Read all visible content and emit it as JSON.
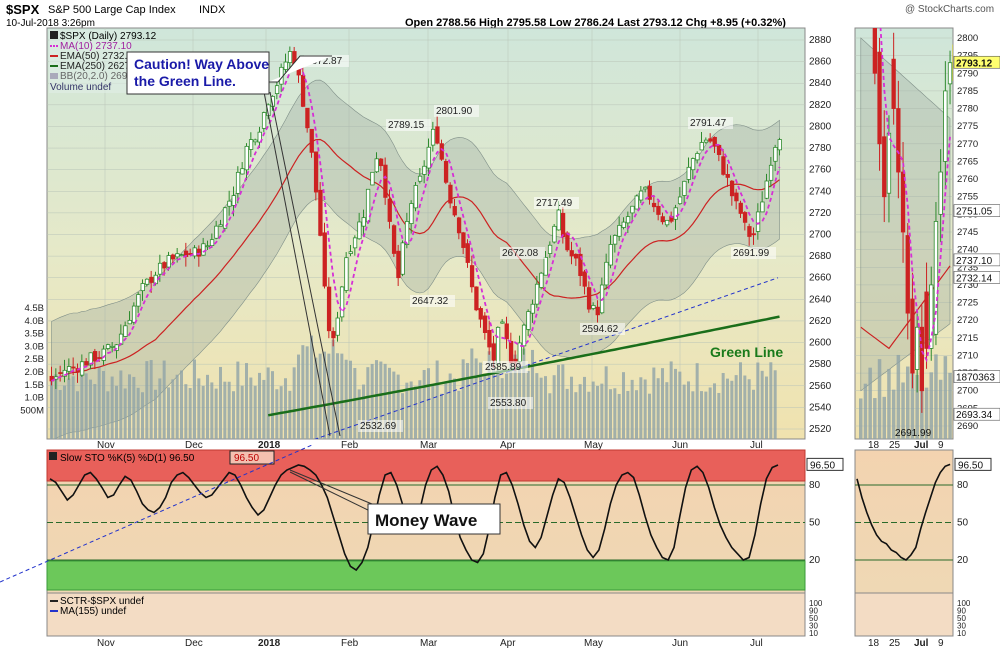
{
  "header": {
    "ticker": "$SPX",
    "name": "S&P 500 Large Cap Index",
    "exchange": "INDX",
    "date": "10-Jul-2018 3:26pm",
    "watermark": "@ StockCharts.com",
    "ohlc": "Open 2788.56  High 2795.58  Low 2786.24  Last 2793.12  Chg +8.95 (+0.32%)"
  },
  "legend": {
    "spx": "$SPX (Daily) 2793.12",
    "ma10": "MA(10) 2737.10",
    "ema50": "EMA(50) 2732.14",
    "ema250": "EMA(250) 2627",
    "bb": "BB(20,2.0) 2693",
    "volume": "Volume undef"
  },
  "annotations": {
    "caution": "Caution! Way Above the Green Line.",
    "caution_line1": "Caution! Way Above",
    "caution_line2": "the Green Line.",
    "green_line": "Green Line",
    "money_wave": "Money Wave"
  },
  "sto_legend": "Slow STO %K(5) %D(1) 96.50",
  "sto_value": "96.50",
  "sctr_legend": "SCTR-$SPX undef",
  "ma155_legend": "MA(155) undef",
  "colors": {
    "up": "#2e8b2e",
    "down": "#cc2222",
    "ma10": "#d62fd6",
    "ema50": "#cc2222",
    "ema250": "#1a6e1a",
    "trend": "#2233cc",
    "overbought": "#e8605a",
    "oversold": "#6cc85a"
  },
  "chart_data": [
    {
      "type": "candlestick",
      "title": "$SPX (Daily)",
      "ylim": [
        2520,
        2880
      ],
      "yticks": [
        "2880",
        "2860",
        "2840",
        "2820",
        "2800",
        "2780",
        "2760",
        "2740",
        "2720",
        "2700",
        "2680",
        "2660",
        "2640",
        "2620",
        "2600",
        "2580",
        "2560",
        "2540",
        "2520"
      ],
      "volume_ticks": [
        "4.5B",
        "4.0B",
        "3.5B",
        "3.0B",
        "2.5B",
        "2.0B",
        "1.5B",
        "1.0B",
        "500M"
      ],
      "xticks": [
        "Nov",
        "Dec",
        "2018",
        "Feb",
        "Mar",
        "Apr",
        "May",
        "Jun",
        "Jul"
      ],
      "price_labels": [
        "2872.87",
        "2789.15",
        "2801.90",
        "2647.32",
        "2717.49",
        "2672.08",
        "2585.89",
        "2553.80",
        "2532.69",
        "2594.62",
        "2791.47",
        "2691.99"
      ],
      "close_path": [
        [
          0,
          2565
        ],
        [
          6,
          2575
        ],
        [
          12,
          2578
        ],
        [
          18,
          2585
        ],
        [
          24,
          2590
        ],
        [
          30,
          2600
        ],
        [
          36,
          2625
        ],
        [
          42,
          2650
        ],
        [
          48,
          2665
        ],
        [
          54,
          2675
        ],
        [
          60,
          2680
        ],
        [
          66,
          2683
        ],
        [
          72,
          2690
        ],
        [
          78,
          2715
        ],
        [
          84,
          2740
        ],
        [
          90,
          2780
        ],
        [
          96,
          2800
        ],
        [
          100,
          2825
        ],
        [
          104,
          2840
        ],
        [
          108,
          2860
        ],
        [
          111,
          2872
        ],
        [
          115,
          2835
        ],
        [
          118,
          2800
        ],
        [
          121,
          2760
        ],
        [
          124,
          2700
        ],
        [
          127,
          2620
        ],
        [
          130,
          2600
        ],
        [
          133,
          2640
        ],
        [
          136,
          2680
        ],
        [
          140,
          2700
        ],
        [
          144,
          2720
        ],
        [
          148,
          2760
        ],
        [
          151,
          2780
        ],
        [
          154,
          2740
        ],
        [
          157,
          2690
        ],
        [
          160,
          2660
        ],
        [
          163,
          2700
        ],
        [
          166,
          2730
        ],
        [
          170,
          2750
        ],
        [
          174,
          2780
        ],
        [
          177,
          2800
        ],
        [
          180,
          2770
        ],
        [
          183,
          2740
        ],
        [
          186,
          2720
        ],
        [
          189,
          2700
        ],
        [
          192,
          2670
        ],
        [
          195,
          2640
        ],
        [
          198,
          2620
        ],
        [
          201,
          2600
        ],
        [
          204,
          2585
        ],
        [
          207,
          2620
        ],
        [
          210,
          2600
        ],
        [
          213,
          2580
        ],
        [
          216,
          2600
        ],
        [
          219,
          2620
        ],
        [
          222,
          2640
        ],
        [
          225,
          2660
        ],
        [
          228,
          2680
        ],
        [
          231,
          2700
        ],
        [
          234,
          2717
        ],
        [
          237,
          2690
        ],
        [
          240,
          2680
        ],
        [
          243,
          2672
        ],
        [
          246,
          2650
        ],
        [
          249,
          2630
        ],
        [
          252,
          2630
        ],
        [
          255,
          2660
        ],
        [
          258,
          2690
        ],
        [
          261,
          2700
        ],
        [
          264,
          2710
        ],
        [
          267,
          2720
        ],
        [
          270,
          2730
        ],
        [
          273,
          2740
        ],
        [
          276,
          2735
        ],
        [
          279,
          2725
        ],
        [
          282,
          2715
        ],
        [
          285,
          2710
        ],
        [
          288,
          2725
        ],
        [
          291,
          2740
        ],
        [
          294,
          2760
        ],
        [
          297,
          2775
        ],
        [
          300,
          2785
        ],
        [
          303,
          2790
        ],
        [
          306,
          2780
        ],
        [
          309,
          2765
        ],
        [
          312,
          2750
        ],
        [
          315,
          2730
        ],
        [
          318,
          2720
        ],
        [
          321,
          2700
        ],
        [
          324,
          2700
        ],
        [
          327,
          2725
        ],
        [
          330,
          2750
        ],
        [
          333,
          2780
        ],
        [
          336,
          2793
        ]
      ],
      "ema250_range": [
        2500,
        2624
      ],
      "trendline": [
        [
          0,
          2425
        ],
        [
          336,
          2660
        ]
      ]
    },
    {
      "type": "line",
      "title": "Slow STO %K(5) %D(1)",
      "ylim": [
        0,
        100
      ],
      "yticks": [
        "80",
        "50",
        "20"
      ],
      "sub_ticks": [
        "100",
        "90",
        "50",
        "30",
        "10"
      ],
      "last": 96.5,
      "values": [
        85,
        82,
        75,
        68,
        72,
        80,
        88,
        90,
        85,
        78,
        70,
        72,
        80,
        87,
        84,
        75,
        65,
        60,
        58,
        62,
        70,
        82,
        88,
        90,
        86,
        80,
        74,
        70,
        72,
        78,
        84,
        90,
        88,
        80,
        70,
        62,
        56,
        60,
        70,
        80,
        88,
        92,
        94,
        96,
        95,
        92,
        88,
        80,
        70,
        55,
        40,
        25,
        15,
        12,
        18,
        30,
        50,
        72,
        88,
        90,
        80,
        65,
        50,
        48,
        60,
        80,
        92,
        95,
        88,
        75,
        55,
        38,
        28,
        20,
        18,
        25,
        45,
        70,
        88,
        90,
        80,
        65,
        48,
        35,
        30,
        38,
        55,
        72,
        85,
        82,
        70,
        55,
        40,
        28,
        22,
        28,
        45,
        65,
        80,
        88,
        90,
        86,
        72,
        55,
        40,
        30,
        22,
        20,
        30,
        55,
        78,
        92,
        95,
        90,
        78,
        62,
        48,
        38,
        30,
        25,
        20,
        22,
        40,
        65,
        85,
        94,
        96
      ]
    }
  ],
  "side_panel": {
    "price_ticks": [
      "2800",
      "2795",
      "2790",
      "2785",
      "2780",
      "2775",
      "2770",
      "2765",
      "2760",
      "2755",
      "2750",
      "2745",
      "2740",
      "2735",
      "2730",
      "2725",
      "2720",
      "2715",
      "2710",
      "2705",
      "2700",
      "2695",
      "2690"
    ],
    "price_labels": [
      "2793.12",
      "2751.05",
      "2737.10",
      "2732.14",
      "2693.34",
      "1870363",
      "2691.99"
    ],
    "xticks": [
      "18",
      "25",
      "Jul",
      "9"
    ],
    "sto_ticks": [
      "80",
      "50",
      "20"
    ]
  }
}
